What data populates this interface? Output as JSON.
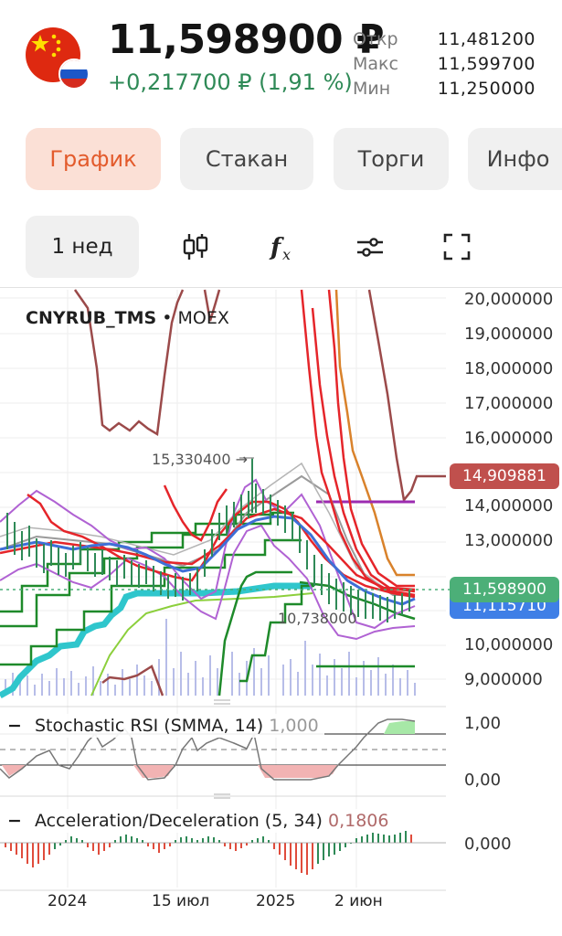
{
  "header": {
    "price": "11,598900 ₽",
    "change": "+0,217700 ₽ (1,91 %)",
    "ohlc": [
      {
        "label": "Откр",
        "value": "11,481200"
      },
      {
        "label": "Макс",
        "value": "11,599700"
      },
      {
        "label": "Мин",
        "value": "11,250000"
      }
    ]
  },
  "tabs": [
    {
      "label": "График",
      "active": true
    },
    {
      "label": "Стакан",
      "active": false
    },
    {
      "label": "Торги",
      "active": false
    },
    {
      "label": "Инфо",
      "active": false
    }
  ],
  "toolbar": {
    "period": "1 нед",
    "icons": [
      "candlestick-icon",
      "function-icon",
      "settings-sliders-icon",
      "fullscreen-icon"
    ]
  },
  "chart": {
    "symbol": "CNYRUB_TMS",
    "exchange": "MOEX",
    "separator": "•",
    "y_ticks": [
      "20,000000",
      "19,000000",
      "18,000000",
      "17,000000",
      "16,000000",
      "14,000000",
      "13,000000",
      "10,000000",
      "9,000000"
    ],
    "tags": {
      "upper": "14,909881",
      "current": "11,598900",
      "blue": "11,115710"
    },
    "annotations": {
      "high": "15,330400 →",
      "low": "10,738000"
    },
    "colors": {
      "up": "#2f8a57",
      "accent": "#e35b2c",
      "red_tag": "#c0504d",
      "green_tag": "#4caf78",
      "blue_tag": "#3f7fe6"
    }
  },
  "indicators": {
    "stoch": {
      "title": "Stochastic RSI (SMMA, 14)",
      "value": "1,000",
      "ticks": [
        "1,00",
        "0,00"
      ]
    },
    "ac": {
      "title": "Acceleration/Deceleration (5, 34)",
      "value": "0,1806",
      "ticks": [
        "0,000"
      ]
    }
  },
  "x_axis": [
    "2024",
    "15 июл",
    "2025",
    "2 июн"
  ],
  "chart_data": {
    "type": "line",
    "x": [
      "2024",
      "15 июл",
      "2025",
      "2 июн"
    ],
    "ylim": [
      8.8,
      20.2
    ],
    "y_ticks": [
      9,
      10,
      13,
      14,
      16,
      17,
      18,
      19,
      20
    ],
    "series": [
      {
        "name": "CNYRUB_TMS",
        "values": [
          12.4,
          12.6,
          13.6,
          11.6
        ]
      }
    ],
    "annotations": [
      "15,330400",
      "10,738000"
    ]
  }
}
